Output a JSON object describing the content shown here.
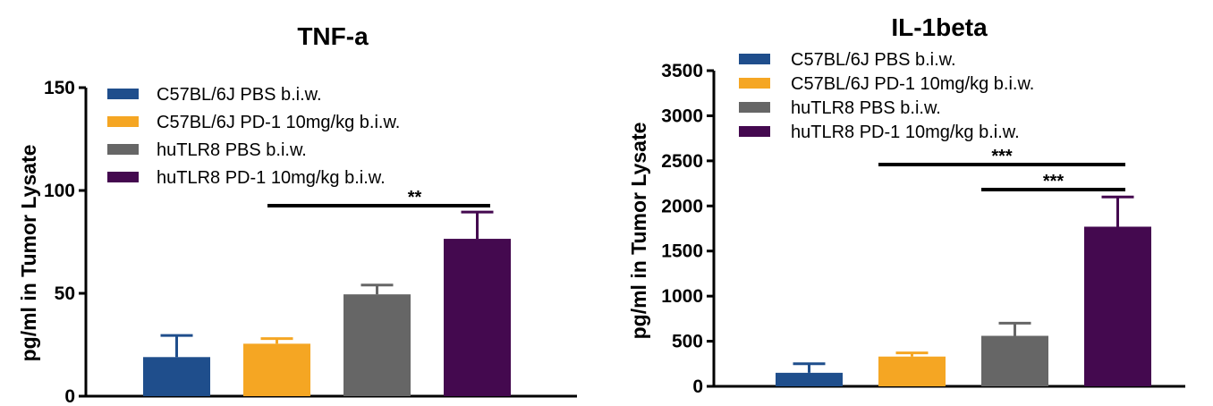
{
  "chart_data": [
    {
      "type": "bar",
      "title": "TNF-a",
      "ylabel": "pg/ml in Tumor Lysate",
      "xlabel": "",
      "ylim": [
        0,
        150
      ],
      "yticks": [
        0,
        50,
        100,
        150
      ],
      "categories": [
        "C57BL/6J PBS b.i.w.",
        "C57BL/6J PD-1 10mg/kg b.i.w.",
        "huTLR8 PBS b.i.w.",
        "huTLR8 PD-1 10mg/kg b.i.w."
      ],
      "values": [
        19,
        25.5,
        49.5,
        76.5
      ],
      "errors": [
        10.5,
        2.5,
        4.5,
        13
      ],
      "colors": [
        "#1f4e8c",
        "#f5a623",
        "#666666",
        "#44094f"
      ],
      "legend_position": "top-left",
      "significance": [
        {
          "from": 1,
          "to": 3,
          "label": "**"
        }
      ]
    },
    {
      "type": "bar",
      "title": "IL-1beta",
      "ylabel": "pg/ml in Tumor Lysate",
      "xlabel": "",
      "ylim": [
        0,
        3500
      ],
      "yticks": [
        0,
        500,
        1000,
        1500,
        2000,
        2500,
        3000,
        3500
      ],
      "categories": [
        "C57BL/6J PBS b.i.w.",
        "C57BL/6J PD-1 10mg/kg b.i.w.",
        "huTLR8 PBS b.i.w.",
        "huTLR8 PD-1 10mg/kg b.i.w."
      ],
      "values": [
        150,
        330,
        560,
        1770
      ],
      "errors": [
        100,
        40,
        140,
        330
      ],
      "colors": [
        "#1f4e8c",
        "#f5a623",
        "#666666",
        "#44094f"
      ],
      "legend_position": "top-left",
      "significance": [
        {
          "from": 1,
          "to": 3,
          "label": "***"
        },
        {
          "from": 2,
          "to": 3,
          "label": "***"
        }
      ]
    }
  ]
}
